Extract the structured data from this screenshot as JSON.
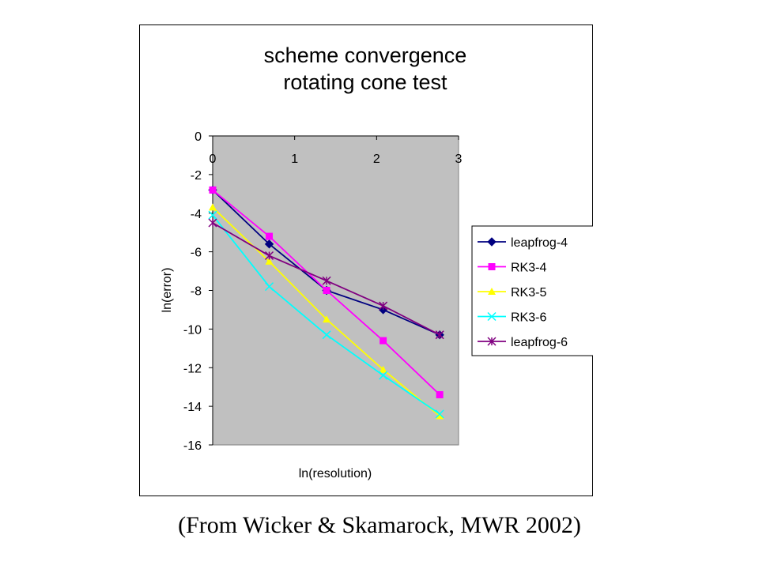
{
  "chart_data": {
    "type": "line",
    "title_line1": "scheme convergence",
    "title_line2": "rotating cone test",
    "xlabel": "ln(resolution)",
    "ylabel": "ln(error)",
    "xlim": [
      0,
      3
    ],
    "ylim": [
      -16,
      0
    ],
    "x_ticks": [
      "0",
      "1",
      "2",
      "3"
    ],
    "y_ticks": [
      "0",
      "-2",
      "-4",
      "-6",
      "-8",
      "-10",
      "-12",
      "-14",
      "-16"
    ],
    "x": [
      0.0,
      0.69,
      1.39,
      2.08,
      2.77
    ],
    "series": [
      {
        "name": "leapfrog-4",
        "color": "#000080",
        "marker": "diamond",
        "values": [
          -2.8,
          -5.6,
          -8.0,
          -9.0,
          -10.3
        ]
      },
      {
        "name": "RK3-4",
        "color": "#ff00ff",
        "marker": "square",
        "values": [
          -2.8,
          -5.2,
          -8.0,
          -10.6,
          -13.4
        ]
      },
      {
        "name": "RK3-5",
        "color": "#ffff00",
        "marker": "triangle",
        "values": [
          -3.7,
          -6.5,
          -9.5,
          -12.1,
          -14.5
        ]
      },
      {
        "name": "RK3-6",
        "color": "#00ffff",
        "marker": "x",
        "values": [
          -4.1,
          -7.8,
          -10.3,
          -12.4,
          -14.4
        ]
      },
      {
        "name": "leapfrog-6",
        "color": "#800080",
        "marker": "star",
        "values": [
          -4.5,
          -6.2,
          -7.5,
          -8.8,
          -10.3
        ]
      }
    ],
    "plot_bg": "#c0c0c0",
    "grid": false,
    "legend_position": "right"
  },
  "caption": "(From Wicker & Skamarock, MWR 2002)"
}
